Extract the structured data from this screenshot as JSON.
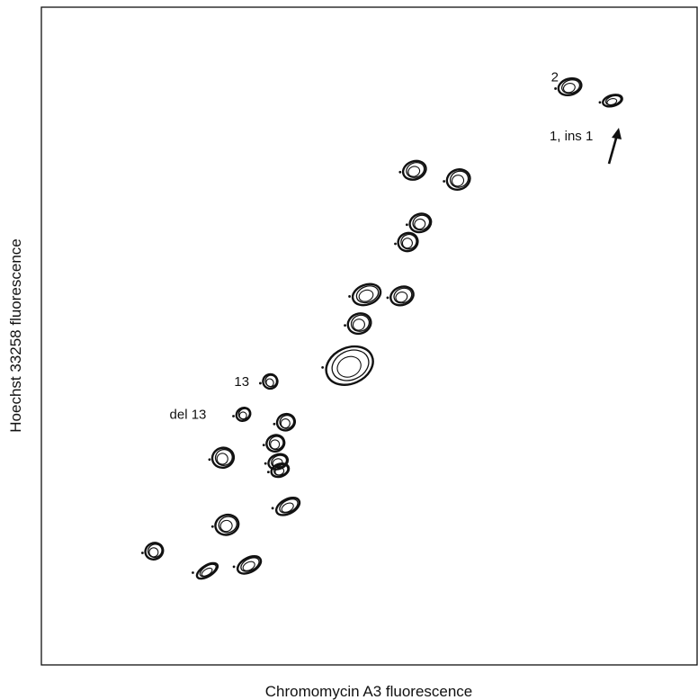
{
  "chart_data": {
    "type": "scatter",
    "title": "",
    "xlabel": "Chromomycin A3 fluorescence",
    "ylabel": "Hoechst 33258 fluorescence",
    "xlim": [
      0,
      100
    ],
    "ylim": [
      0,
      100
    ],
    "grid": false,
    "legend": "none",
    "tick_labels": false,
    "peaks": [
      {
        "x": 80.6,
        "y": 87.9,
        "label": "2"
      },
      {
        "x": 87.1,
        "y": 85.8,
        "label": "1, ins 1"
      },
      {
        "x": 56.9,
        "y": 75.2
      },
      {
        "x": 63.6,
        "y": 73.8
      },
      {
        "x": 57.8,
        "y": 67.2
      },
      {
        "x": 55.9,
        "y": 64.3
      },
      {
        "x": 49.6,
        "y": 56.3
      },
      {
        "x": 55.0,
        "y": 56.1
      },
      {
        "x": 48.5,
        "y": 51.9
      },
      {
        "x": 47.0,
        "y": 45.5
      },
      {
        "x": 34.9,
        "y": 43.1,
        "label": "13"
      },
      {
        "x": 30.8,
        "y": 38.1,
        "label": "del 13"
      },
      {
        "x": 37.3,
        "y": 36.9
      },
      {
        "x": 35.7,
        "y": 33.7
      },
      {
        "x": 36.1,
        "y": 30.9
      },
      {
        "x": 36.4,
        "y": 29.6
      },
      {
        "x": 27.7,
        "y": 31.5
      },
      {
        "x": 37.6,
        "y": 24.1
      },
      {
        "x": 28.3,
        "y": 21.3
      },
      {
        "x": 17.2,
        "y": 17.3
      },
      {
        "x": 31.7,
        "y": 15.2
      },
      {
        "x": 25.3,
        "y": 14.3
      }
    ],
    "colors": {
      "ink": "#111111",
      "background": "#ffffff"
    }
  }
}
